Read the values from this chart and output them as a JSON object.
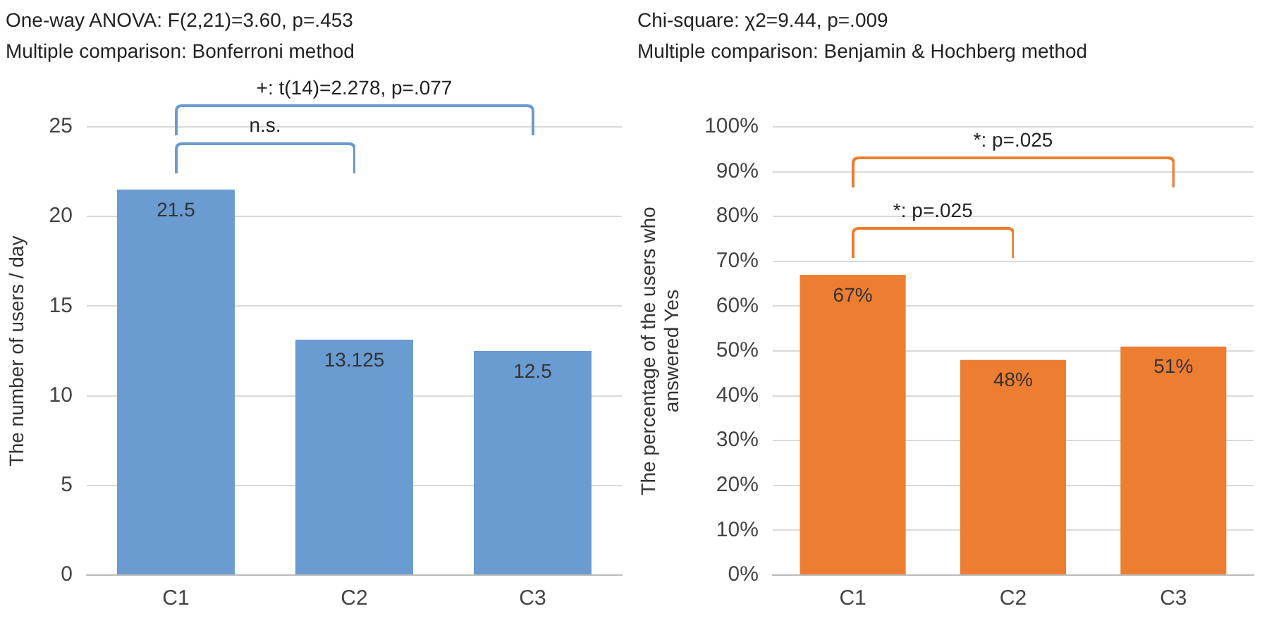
{
  "chart_data": [
    {
      "type": "bar",
      "title": "One-way ANOVA: F(2,21)=3.60, p=.453",
      "subtitle": "Multiple comparison: Bonferroni method",
      "ylabel": "The number of users / day",
      "categories": [
        "C1",
        "C2",
        "C3"
      ],
      "values": [
        21.5,
        13.125,
        12.5
      ],
      "color": "#6a9bd1",
      "ylim": [
        0,
        25
      ],
      "yticks": [
        0,
        5,
        10,
        15,
        20,
        25
      ],
      "grid": "y",
      "data_labels": true,
      "annotations": [
        "n.s.",
        "+: t(14)=2.278, p=.077"
      ]
    },
    {
      "type": "bar",
      "title": "Chi-square: χ2=9.44, p=.009",
      "subtitle": "Multiple comparison: Benjamin & Hochberg method",
      "ylabel": "The percentage of the users who answered Yes",
      "categories": [
        "C1",
        "C2",
        "C3"
      ],
      "values": [
        67,
        48,
        51
      ],
      "value_labels": [
        "67%",
        "48%",
        "51%"
      ],
      "color": "#ed7d31",
      "ylim": [
        0,
        100
      ],
      "yticks": [
        {
          "value": 0,
          "label": "0%"
        },
        {
          "value": 10,
          "label": "10%"
        },
        {
          "value": 20,
          "label": "20%"
        },
        {
          "value": 30,
          "label": "30%"
        },
        {
          "value": 40,
          "label": "40%"
        },
        {
          "value": 50,
          "label": "50%"
        },
        {
          "value": 60,
          "label": "60%"
        },
        {
          "value": 70,
          "label": "70%"
        },
        {
          "value": 80,
          "label": "80%"
        },
        {
          "value": 90,
          "label": "90%"
        },
        {
          "value": 100,
          "label": "100%"
        }
      ],
      "grid": "y",
      "annotations": [
        "*: p=.025",
        "*: p=.025"
      ]
    }
  ]
}
